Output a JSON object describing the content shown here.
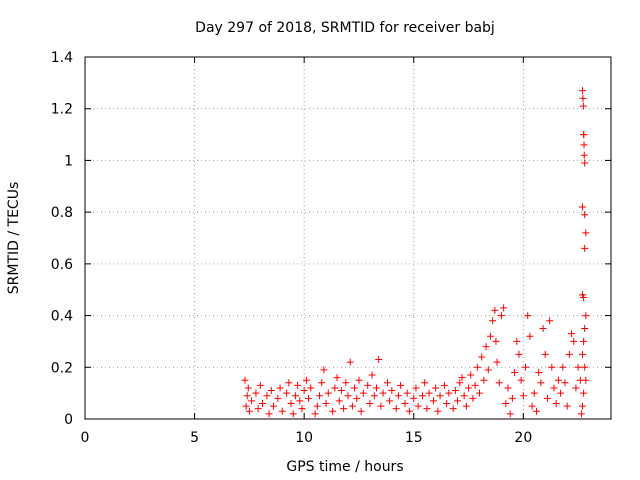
{
  "chart_data": {
    "type": "scatter",
    "title": "Day 297 of 2018, SRMTID for receiver babj",
    "xlabel": "GPS time / hours",
    "ylabel": "SRMTID / TECUs",
    "xlim": [
      0,
      24
    ],
    "ylim": [
      0,
      1.4
    ],
    "x_ticks": [
      0,
      5,
      10,
      15,
      20
    ],
    "x_tick_labels": [
      "0",
      "5",
      "10",
      "15",
      "20"
    ],
    "y_ticks": [
      0,
      0.2,
      0.4,
      0.6,
      0.8,
      1.0,
      1.2,
      1.4
    ],
    "y_tick_labels": [
      "0",
      "0.2",
      "0.4",
      "0.6",
      "0.8",
      "1",
      "1.2",
      "1.4"
    ],
    "grid": true,
    "marker": "+",
    "series": [
      {
        "name": "SRMTID",
        "color": "#ff0000",
        "points": [
          [
            7.3,
            0.15
          ],
          [
            7.35,
            0.05
          ],
          [
            7.4,
            0.09
          ],
          [
            7.45,
            0.12
          ],
          [
            7.5,
            0.03
          ],
          [
            7.6,
            0.07
          ],
          [
            7.8,
            0.1
          ],
          [
            7.9,
            0.04
          ],
          [
            8.0,
            0.13
          ],
          [
            8.1,
            0.06
          ],
          [
            8.3,
            0.09
          ],
          [
            8.4,
            0.02
          ],
          [
            8.5,
            0.11
          ],
          [
            8.6,
            0.05
          ],
          [
            8.8,
            0.08
          ],
          [
            8.9,
            0.12
          ],
          [
            9.0,
            0.03
          ],
          [
            9.2,
            0.1
          ],
          [
            9.3,
            0.14
          ],
          [
            9.4,
            0.06
          ],
          [
            9.5,
            0.02
          ],
          [
            9.6,
            0.09
          ],
          [
            9.7,
            0.13
          ],
          [
            9.8,
            0.07
          ],
          [
            9.9,
            0.04
          ],
          [
            10.0,
            0.11
          ],
          [
            10.1,
            0.15
          ],
          [
            10.2,
            0.08
          ],
          [
            10.3,
            0.12
          ],
          [
            10.5,
            0.02
          ],
          [
            10.6,
            0.05
          ],
          [
            10.7,
            0.09
          ],
          [
            10.8,
            0.14
          ],
          [
            10.9,
            0.19
          ],
          [
            11.0,
            0.06
          ],
          [
            11.1,
            0.1
          ],
          [
            11.3,
            0.03
          ],
          [
            11.4,
            0.12
          ],
          [
            11.5,
            0.16
          ],
          [
            11.6,
            0.07
          ],
          [
            11.7,
            0.11
          ],
          [
            11.8,
            0.04
          ],
          [
            11.9,
            0.14
          ],
          [
            12.0,
            0.09
          ],
          [
            12.1,
            0.22
          ],
          [
            12.2,
            0.05
          ],
          [
            12.3,
            0.12
          ],
          [
            12.4,
            0.08
          ],
          [
            12.5,
            0.15
          ],
          [
            12.6,
            0.03
          ],
          [
            12.7,
            0.1
          ],
          [
            12.9,
            0.13
          ],
          [
            13.0,
            0.06
          ],
          [
            13.1,
            0.17
          ],
          [
            13.2,
            0.09
          ],
          [
            13.3,
            0.12
          ],
          [
            13.4,
            0.23
          ],
          [
            13.5,
            0.05
          ],
          [
            13.6,
            0.1
          ],
          [
            13.8,
            0.14
          ],
          [
            13.9,
            0.07
          ],
          [
            14.0,
            0.11
          ],
          [
            14.2,
            0.04
          ],
          [
            14.3,
            0.09
          ],
          [
            14.4,
            0.13
          ],
          [
            14.6,
            0.06
          ],
          [
            14.7,
            0.1
          ],
          [
            14.8,
            0.03
          ],
          [
            15.0,
            0.08
          ],
          [
            15.1,
            0.12
          ],
          [
            15.2,
            0.05
          ],
          [
            15.4,
            0.09
          ],
          [
            15.5,
            0.14
          ],
          [
            15.6,
            0.04
          ],
          [
            15.7,
            0.1
          ],
          [
            15.9,
            0.07
          ],
          [
            16.0,
            0.12
          ],
          [
            16.1,
            0.03
          ],
          [
            16.2,
            0.09
          ],
          [
            16.4,
            0.13
          ],
          [
            16.5,
            0.06
          ],
          [
            16.6,
            0.1
          ],
          [
            16.8,
            0.04
          ],
          [
            16.9,
            0.11
          ],
          [
            17.0,
            0.07
          ],
          [
            17.1,
            0.14
          ],
          [
            17.2,
            0.16
          ],
          [
            17.3,
            0.09
          ],
          [
            17.4,
            0.05
          ],
          [
            17.5,
            0.12
          ],
          [
            17.6,
            0.17
          ],
          [
            17.7,
            0.08
          ],
          [
            17.8,
            0.13
          ],
          [
            17.9,
            0.2
          ],
          [
            18.0,
            0.1
          ],
          [
            18.1,
            0.24
          ],
          [
            18.2,
            0.15
          ],
          [
            18.3,
            0.28
          ],
          [
            18.4,
            0.19
          ],
          [
            18.5,
            0.32
          ],
          [
            18.6,
            0.38
          ],
          [
            18.7,
            0.42
          ],
          [
            18.75,
            0.3
          ],
          [
            18.8,
            0.22
          ],
          [
            18.9,
            0.14
          ],
          [
            19.0,
            0.4
          ],
          [
            19.1,
            0.43
          ],
          [
            19.2,
            0.06
          ],
          [
            19.3,
            0.12
          ],
          [
            19.4,
            0.02
          ],
          [
            19.5,
            0.08
          ],
          [
            19.6,
            0.18
          ],
          [
            19.7,
            0.3
          ],
          [
            19.8,
            0.25
          ],
          [
            19.9,
            0.15
          ],
          [
            20.0,
            0.09
          ],
          [
            20.1,
            0.2
          ],
          [
            20.2,
            0.4
          ],
          [
            20.3,
            0.32
          ],
          [
            20.4,
            0.05
          ],
          [
            20.5,
            0.1
          ],
          [
            20.6,
            0.03
          ],
          [
            20.7,
            0.18
          ],
          [
            20.8,
            0.14
          ],
          [
            20.9,
            0.35
          ],
          [
            21.0,
            0.25
          ],
          [
            21.1,
            0.08
          ],
          [
            21.2,
            0.38
          ],
          [
            21.3,
            0.2
          ],
          [
            21.4,
            0.12
          ],
          [
            21.5,
            0.06
          ],
          [
            21.6,
            0.15
          ],
          [
            21.7,
            0.1
          ],
          [
            21.8,
            0.2
          ],
          [
            21.9,
            0.14
          ],
          [
            22.0,
            0.05
          ],
          [
            22.1,
            0.25
          ],
          [
            22.2,
            0.33
          ],
          [
            22.3,
            0.3
          ],
          [
            22.4,
            0.12
          ],
          [
            22.5,
            0.2
          ],
          [
            22.6,
            0.15
          ],
          [
            22.65,
            0.02
          ],
          [
            22.7,
            1.27
          ],
          [
            22.72,
            1.24
          ],
          [
            22.74,
            1.21
          ],
          [
            22.75,
            1.1
          ],
          [
            22.76,
            1.1
          ],
          [
            22.77,
            1.06
          ],
          [
            22.78,
            1.02
          ],
          [
            22.8,
            0.99
          ],
          [
            22.7,
            0.82
          ],
          [
            22.8,
            0.79
          ],
          [
            22.85,
            0.72
          ],
          [
            22.8,
            0.66
          ],
          [
            22.7,
            0.48
          ],
          [
            22.75,
            0.47
          ],
          [
            22.85,
            0.4
          ],
          [
            22.8,
            0.35
          ],
          [
            22.75,
            0.3
          ],
          [
            22.7,
            0.25
          ],
          [
            22.8,
            0.2
          ],
          [
            22.85,
            0.15
          ],
          [
            22.75,
            0.1
          ],
          [
            22.7,
            0.05
          ]
        ]
      }
    ]
  }
}
